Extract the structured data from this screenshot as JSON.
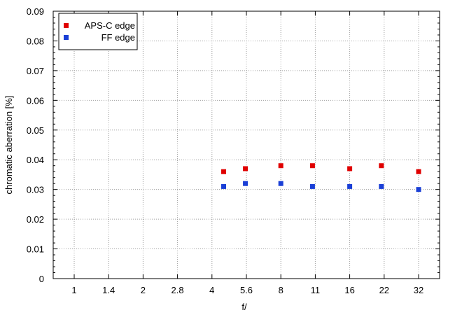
{
  "chart_data": {
    "type": "scatter",
    "xlabel": "f/",
    "ylabel": "chromatic  aberration [%]",
    "x_categories": [
      "1",
      "1.4",
      "2",
      "2.8",
      "4",
      "5.6",
      "8",
      "11",
      "16",
      "22",
      "32"
    ],
    "ylim": [
      0,
      0.09
    ],
    "y_ticks": [
      "0",
      "0.01",
      "0.02",
      "0.03",
      "0.04",
      "0.05",
      "0.06",
      "0.07",
      "0.08",
      "0.09"
    ],
    "grid": true,
    "legend_position": "top-left",
    "series": [
      {
        "name": "APS-C edge",
        "color": "#e00000",
        "points": [
          {
            "f": 4.5,
            "y": 0.036
          },
          {
            "f": 5.6,
            "y": 0.037
          },
          {
            "f": 8,
            "y": 0.038
          },
          {
            "f": 11,
            "y": 0.038
          },
          {
            "f": 16,
            "y": 0.037
          },
          {
            "f": 22,
            "y": 0.038
          },
          {
            "f": 32,
            "y": 0.036
          }
        ]
      },
      {
        "name": "FF edge",
        "color": "#1a3fd6",
        "points": [
          {
            "f": 4.5,
            "y": 0.031
          },
          {
            "f": 5.6,
            "y": 0.032
          },
          {
            "f": 8,
            "y": 0.032
          },
          {
            "f": 11,
            "y": 0.031
          },
          {
            "f": 16,
            "y": 0.031
          },
          {
            "f": 22,
            "y": 0.031
          },
          {
            "f": 32,
            "y": 0.03
          }
        ]
      }
    ]
  }
}
